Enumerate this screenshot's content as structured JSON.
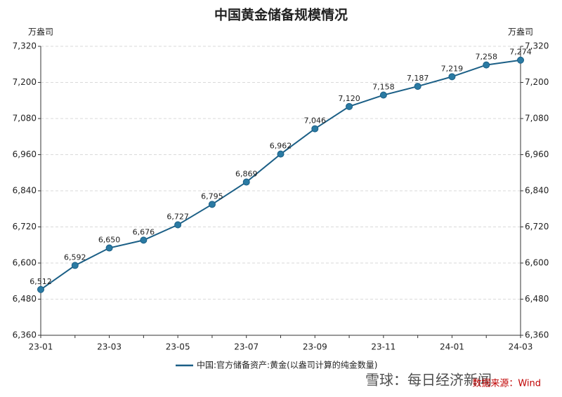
{
  "chart_data": {
    "type": "line",
    "title": "中国黄金储备规模情况",
    "y_label": "万盎司",
    "y2_label": "万盎司",
    "categories": [
      "23-01",
      null,
      "23-03",
      null,
      "23-05",
      null,
      "23-07",
      null,
      "23-09",
      null,
      "23-11",
      null,
      "24-01",
      null,
      "24-03"
    ],
    "series": [
      {
        "name": "中国:官方储备资产:黄金(以盎司计算的纯金数量)",
        "color": "#1b5f86",
        "marker_color": "#2a7aa3",
        "values": [
          6512,
          6592,
          6650,
          6676,
          6727,
          6795,
          6869,
          6962,
          7046,
          7120,
          7158,
          7187,
          7219,
          7258,
          7274
        ],
        "value_labels": [
          "6,512",
          "6,592",
          "6,650",
          "6,676",
          "6,727",
          "6,795",
          "6,869",
          "6,962",
          "7,046",
          "7,120",
          "7,158",
          "7,187",
          "7,219",
          "7,258",
          "7,274"
        ]
      }
    ],
    "ylim": [
      6360,
      7320
    ],
    "yticks": [
      {
        "value": 6360,
        "label": "6,360"
      },
      {
        "value": 6480,
        "label": "6,480"
      },
      {
        "value": 6600,
        "label": "6,600"
      },
      {
        "value": 6720,
        "label": "6,720"
      },
      {
        "value": 6840,
        "label": "6,840"
      },
      {
        "value": 6960,
        "label": "6,960"
      },
      {
        "value": 7080,
        "label": "7,080"
      },
      {
        "value": 7200,
        "label": "7,200"
      },
      {
        "value": 7320,
        "label": "7,320"
      }
    ],
    "y2lim": [
      6360,
      7320
    ],
    "y2ticks": [
      {
        "value": 6360,
        "label": "6,360"
      },
      {
        "value": 6480,
        "label": "6,480"
      },
      {
        "value": 6600,
        "label": "6,600"
      },
      {
        "value": 6720,
        "label": "6,720"
      },
      {
        "value": 6840,
        "label": "6,840"
      },
      {
        "value": 6960,
        "label": "6,960"
      },
      {
        "value": 7080,
        "label": "7,080"
      },
      {
        "value": 7200,
        "label": "7,200"
      },
      {
        "value": 7320,
        "label": "7,320"
      }
    ],
    "grid": true,
    "source": "数据来源：Wind",
    "watermark": "雪球：每日经济新闻"
  }
}
